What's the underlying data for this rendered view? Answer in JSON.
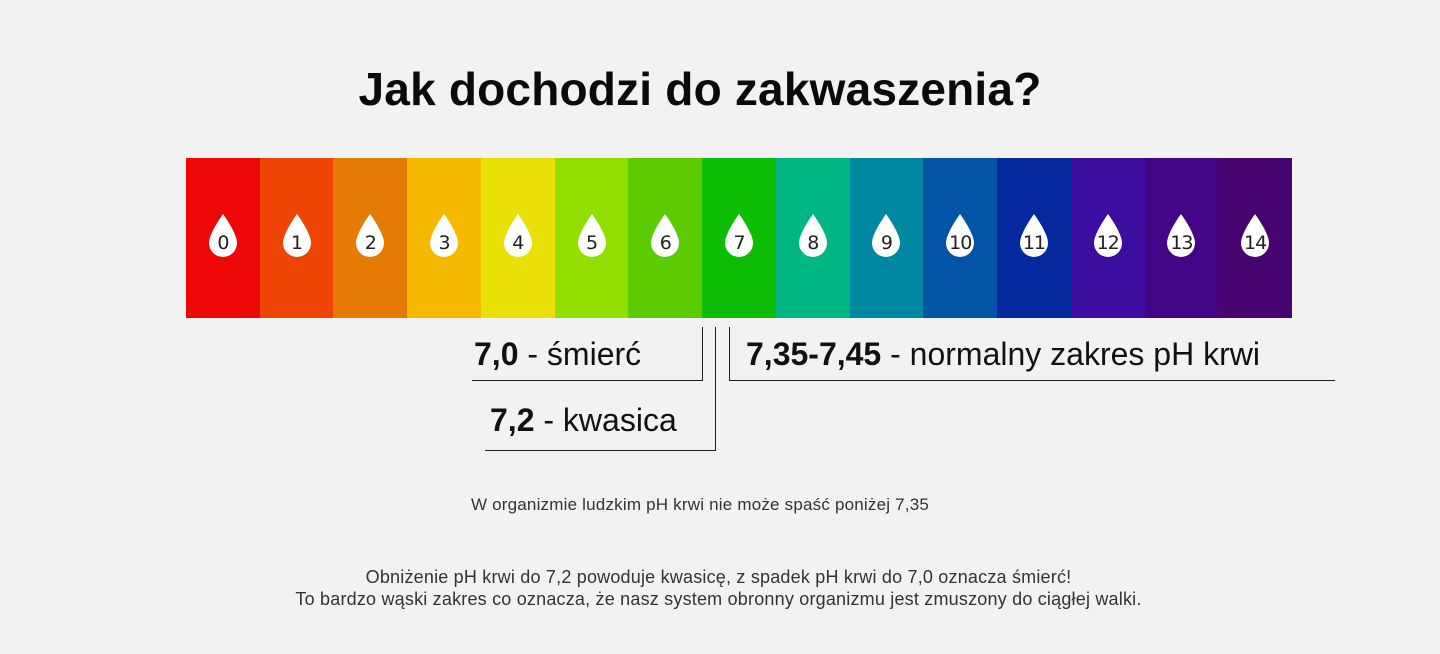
{
  "title": "Jak dochodzi do zakwaszenia?",
  "ph_scale": [
    {
      "value": "0",
      "color": "#ee0707"
    },
    {
      "value": "1",
      "color": "#ee4404"
    },
    {
      "value": "2",
      "color": "#e57b04"
    },
    {
      "value": "3",
      "color": "#f7b800"
    },
    {
      "value": "4",
      "color": "#e8e006"
    },
    {
      "value": "5",
      "color": "#92de00"
    },
    {
      "value": "6",
      "color": "#5ccb00"
    },
    {
      "value": "7",
      "color": "#0dbd03"
    },
    {
      "value": "8",
      "color": "#00b783"
    },
    {
      "value": "9",
      "color": "#0088a2"
    },
    {
      "value": "10",
      "color": "#0254a6"
    },
    {
      "value": "11",
      "color": "#04289d"
    },
    {
      "value": "12",
      "color": "#3c0da0"
    },
    {
      "value": "13",
      "color": "#430585"
    },
    {
      "value": "14",
      "color": "#470470"
    }
  ],
  "labels": {
    "death": {
      "value": "7,0",
      "text": " - śmierć"
    },
    "acidosis": {
      "value": "7,2",
      "text": " - kwasica"
    },
    "normal": {
      "value": "7,35-7,45",
      "text": " - normalny zakres pH krwi"
    }
  },
  "note": "W organizmie ludzkim pH krwi nie może spaść poniżej 7,35",
  "footer": {
    "line1": "Obniżenie pH krwi do 7,2 powoduje kwasicę, z spadek pH krwi do 7,0 oznacza śmierć!",
    "line2": "To bardzo wąski zakres co oznacza, że nasz system obronny organizmu jest zmuszony do ciągłej walki."
  }
}
